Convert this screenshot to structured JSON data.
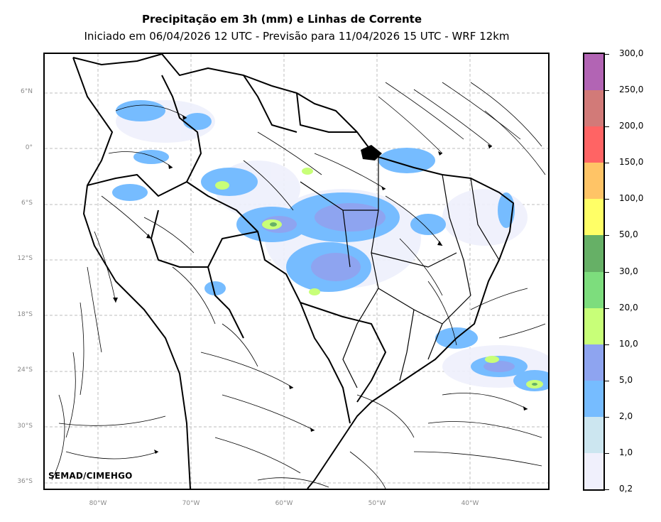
{
  "header": {
    "title": "Precipitação em 3h (mm) e Linhas de Corrente",
    "subtitle": "Iniciado em 06/04/2026 12 UTC - Previsão para 11/04/2026 15 UTC - WRF 12km"
  },
  "map": {
    "credit": "SEMAD/CIMEHGO",
    "lat_labels": [
      "6°N",
      "0°",
      "6°S",
      "12°S",
      "18°S",
      "24°S",
      "30°S",
      "36°S"
    ],
    "lon_labels": [
      "80°W",
      "70°W",
      "60°W",
      "50°W",
      "40°W"
    ]
  },
  "colorbar": {
    "labels": [
      "300,0",
      "250,0",
      "200,0",
      "150,0",
      "100,0",
      "50,0",
      "30,0",
      "20,0",
      "10,0",
      "5,0",
      "2,0",
      "1,0",
      "0,2"
    ],
    "colors": [
      "#b264b4",
      "#d27a78",
      "#ff6464",
      "#ffc466",
      "#ffff66",
      "#66b066",
      "#7ddd7d",
      "#c8ff78",
      "#8ea4f0",
      "#76bcff",
      "#cce6f0",
      "#f0f0fc"
    ]
  }
}
